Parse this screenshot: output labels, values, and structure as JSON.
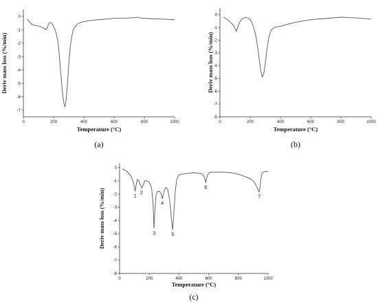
{
  "chart_data": [
    {
      "type": "line",
      "panel_label": "(a)",
      "xlabel": "Temperature (°C)",
      "ylabel": "Deriv mass loss (%/min)",
      "xlim": [
        0,
        1000
      ],
      "ylim": [
        -7.5,
        0.5
      ],
      "xticks": [
        0,
        200,
        400,
        600,
        800,
        1000
      ],
      "yticks": [
        0,
        -1,
        -2,
        -3,
        -4,
        -5,
        -6,
        -7
      ],
      "grid": false,
      "series": [
        {
          "x": [
            25,
            40,
            55,
            70,
            90,
            110,
            130,
            150,
            160,
            170,
            180,
            190,
            200,
            210,
            220,
            230,
            240,
            250,
            260,
            270,
            275,
            280,
            290,
            300,
            310,
            320,
            330,
            340,
            360,
            380,
            400,
            450,
            500,
            550,
            600,
            650,
            700,
            740,
            750,
            760,
            800,
            850,
            900,
            950,
            1000
          ],
          "y": [
            -0.2,
            -0.4,
            -0.6,
            -0.65,
            -0.7,
            -0.75,
            -0.85,
            -1.0,
            -0.8,
            -0.5,
            -0.45,
            -0.55,
            -0.75,
            -1.0,
            -1.4,
            -2.0,
            -3.2,
            -4.6,
            -5.9,
            -6.6,
            -6.75,
            -6.5,
            -5.3,
            -3.6,
            -2.3,
            -1.5,
            -1.0,
            -0.8,
            -0.55,
            -0.45,
            -0.4,
            -0.3,
            -0.25,
            -0.2,
            -0.15,
            -0.15,
            -0.12,
            -0.1,
            -0.05,
            -0.1,
            -0.15,
            -0.18,
            -0.2,
            -0.22,
            -0.25
          ]
        }
      ]
    },
    {
      "type": "line",
      "panel_label": "(b)",
      "xlabel": "Temperature (°C)",
      "ylabel": "Deriv mass loss (%/min)",
      "xlim": [
        0,
        1000
      ],
      "ylim": [
        -8,
        0.5
      ],
      "xticks": [
        0,
        200,
        400,
        600,
        800,
        1000
      ],
      "yticks": [
        0,
        -1,
        -2,
        -3,
        -4,
        -5,
        -6,
        -7,
        -8
      ],
      "grid": false,
      "series": [
        {
          "x": [
            25,
            50,
            70,
            90,
            100,
            110,
            120,
            130,
            150,
            170,
            190,
            200,
            210,
            220,
            230,
            240,
            250,
            260,
            270,
            280,
            290,
            300,
            310,
            320,
            330,
            340,
            360,
            380,
            400,
            450,
            500,
            600,
            700,
            800,
            900,
            1000
          ],
          "y": [
            -0.2,
            -0.4,
            -0.6,
            -0.85,
            -1.1,
            -1.3,
            -0.9,
            -0.6,
            -0.3,
            -0.2,
            -0.3,
            -0.4,
            -0.6,
            -0.9,
            -1.3,
            -1.8,
            -2.6,
            -3.5,
            -4.4,
            -4.9,
            -4.6,
            -3.8,
            -2.8,
            -2.0,
            -1.5,
            -1.2,
            -1.0,
            -0.95,
            -0.9,
            -0.75,
            -0.6,
            -0.4,
            -0.3,
            -0.2,
            -0.25,
            -0.35
          ]
        }
      ]
    },
    {
      "type": "line",
      "panel_label": "(c)",
      "xlabel": "Temperature (°C)",
      "ylabel": "Deriv mass loss (%/min)",
      "xlim": [
        0,
        1000
      ],
      "ylim": [
        -8,
        0.3
      ],
      "xticks": [
        0,
        200,
        400,
        600,
        800,
        1000
      ],
      "yticks": [
        0,
        -1,
        -2,
        -3,
        -4,
        -5,
        -6,
        -7,
        -8
      ],
      "grid": false,
      "annotations": [
        {
          "text": "1",
          "x": 105,
          "y": -1.8
        },
        {
          "text": "2",
          "x": 148,
          "y": -1.55
        },
        {
          "text": "3",
          "x": 232,
          "y": -4.6
        },
        {
          "text": "4",
          "x": 288,
          "y": -2.35
        },
        {
          "text": "5",
          "x": 358,
          "y": -4.7
        },
        {
          "text": "6",
          "x": 580,
          "y": -1.15
        },
        {
          "text": "7",
          "x": 940,
          "y": -1.85
        }
      ],
      "series": [
        {
          "x": [
            20,
            50,
            80,
            95,
            105,
            112,
            120,
            130,
            140,
            150,
            160,
            170,
            180,
            200,
            215,
            225,
            232,
            238,
            245,
            255,
            270,
            280,
            288,
            295,
            305,
            315,
            325,
            335,
            345,
            350,
            358,
            365,
            375,
            385,
            400,
            450,
            500,
            550,
            565,
            575,
            580,
            585,
            595,
            610,
            650,
            700,
            750,
            800,
            850,
            880,
            900,
            915,
            925,
            935,
            940,
            945,
            950,
            960,
            980,
            1000
          ],
          "y": [
            -0.1,
            -0.3,
            -0.7,
            -1.2,
            -1.8,
            -1.3,
            -0.9,
            -1.0,
            -1.3,
            -1.55,
            -1.3,
            -1.0,
            -1.0,
            -1.1,
            -1.5,
            -2.6,
            -4.6,
            -3.2,
            -2.1,
            -1.8,
            -1.8,
            -2.0,
            -2.35,
            -2.0,
            -1.6,
            -1.5,
            -1.7,
            -2.3,
            -3.3,
            -4.0,
            -4.7,
            -3.5,
            -1.8,
            -0.9,
            -0.55,
            -0.45,
            -0.4,
            -0.45,
            -0.6,
            -0.9,
            -1.15,
            -0.85,
            -0.5,
            -0.35,
            -0.35,
            -0.35,
            -0.4,
            -0.5,
            -0.7,
            -0.85,
            -1.0,
            -1.25,
            -1.5,
            -1.75,
            -1.85,
            -1.6,
            -1.0,
            -0.4,
            -0.3,
            -0.3
          ]
        }
      ]
    }
  ]
}
